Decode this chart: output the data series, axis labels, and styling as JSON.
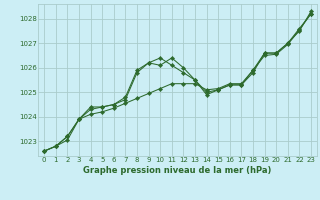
{
  "title": "Graphe pression niveau de la mer (hPa)",
  "bg_color": "#cceef5",
  "grid_color": "#aacccc",
  "line_color": "#2d6a2d",
  "xlim": [
    -0.5,
    23.5
  ],
  "ylim": [
    1022.4,
    1028.6
  ],
  "yticks": [
    1023,
    1024,
    1025,
    1026,
    1027,
    1028
  ],
  "xticks": [
    0,
    1,
    2,
    3,
    4,
    5,
    6,
    7,
    8,
    9,
    10,
    11,
    12,
    13,
    14,
    15,
    16,
    17,
    18,
    19,
    20,
    21,
    22,
    23
  ],
  "xtick_labels": [
    "0",
    "1",
    "2",
    "3",
    "4",
    "5",
    "6",
    "7",
    "8",
    "9",
    "10",
    "11",
    "12",
    "13",
    "14",
    "15",
    "16",
    "17",
    "18",
    "19",
    "20",
    "21",
    "22",
    "23"
  ],
  "series1_x": [
    0,
    1,
    2,
    3,
    4,
    5,
    6,
    7,
    8,
    9,
    10,
    11,
    12,
    13,
    14,
    15,
    16,
    17,
    18,
    19,
    20,
    21,
    22,
    23
  ],
  "series1_y": [
    1022.6,
    1022.8,
    1023.2,
    1023.9,
    1024.3,
    1024.4,
    1024.5,
    1024.8,
    1025.9,
    1026.2,
    1026.1,
    1026.4,
    1026.0,
    1025.5,
    1024.9,
    1025.1,
    1025.3,
    1025.3,
    1025.8,
    1026.6,
    1026.6,
    1027.0,
    1027.5,
    1028.3
  ],
  "series2_x": [
    0,
    1,
    2,
    3,
    4,
    5,
    6,
    7,
    8,
    9,
    10,
    11,
    12,
    13,
    14,
    15,
    16,
    17,
    18,
    19,
    20,
    21,
    22,
    23
  ],
  "series2_y": [
    1022.6,
    1022.8,
    1023.2,
    1023.9,
    1024.4,
    1024.4,
    1024.5,
    1024.7,
    1025.8,
    1026.2,
    1026.4,
    1026.1,
    1025.8,
    1025.5,
    1025.0,
    1025.1,
    1025.3,
    1025.3,
    1025.9,
    1026.6,
    1026.6,
    1027.0,
    1027.6,
    1028.2
  ],
  "series3_x": [
    0,
    1,
    2,
    3,
    4,
    5,
    6,
    7,
    8,
    9,
    10,
    11,
    12,
    13,
    14,
    15,
    16,
    17,
    18,
    19,
    20,
    21,
    22,
    23
  ],
  "series3_y": [
    1022.6,
    1022.8,
    1023.05,
    1023.9,
    1024.1,
    1024.2,
    1024.35,
    1024.55,
    1024.75,
    1024.95,
    1025.15,
    1025.35,
    1025.35,
    1025.35,
    1025.1,
    1025.15,
    1025.35,
    1025.35,
    1025.9,
    1026.5,
    1026.55,
    1026.95,
    1027.55,
    1028.2
  ]
}
